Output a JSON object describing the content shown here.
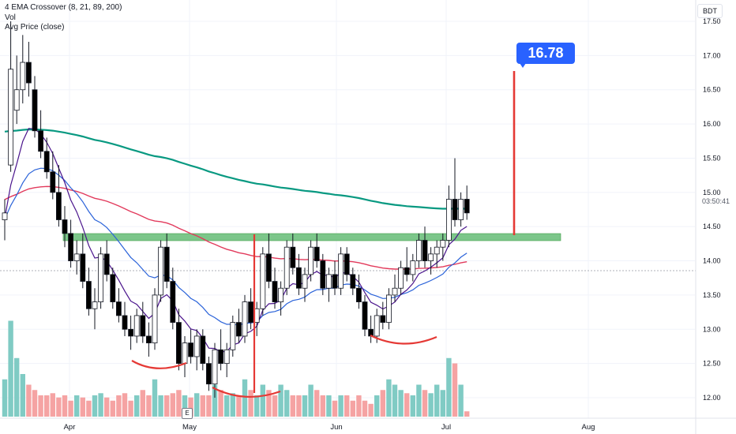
{
  "legend": {
    "ema": "4 EMA Crossover (8, 21, 89, 200)",
    "vol": "Vol",
    "avg": "Avg Price (close)"
  },
  "currency": "BDT",
  "countdown": "03:50:41",
  "target_label": "16.78",
  "e_marker": "E",
  "colors": {
    "up": "#ffffff",
    "down": "#000000",
    "candle_outline": "#131722",
    "vol_up": "#80cbc4",
    "vol_down": "#f5a3a3",
    "ema8": "#4a148c",
    "ema21": "#2b63d9",
    "ema89": "#e23a5c",
    "ema200": "#089981",
    "zone": "#7cc68a",
    "marker": "#e53935"
  },
  "chart_data": {
    "type": "candlestick",
    "y_axis": {
      "min": 11.8,
      "max": 17.6,
      "ticks": [
        "12.00",
        "12.50",
        "13.00",
        "13.50",
        "14.00",
        "14.50",
        "15.00",
        "15.50",
        "16.00",
        "16.50",
        "17.00",
        "17.50"
      ]
    },
    "x_axis": {
      "ticks": [
        "Apr",
        "May",
        "Jun",
        "Jul",
        "Aug"
      ]
    },
    "candles": [
      [
        14.6,
        14.9,
        14.3,
        14.7
      ],
      [
        15.4,
        17.5,
        15.3,
        16.8
      ],
      [
        16.2,
        17.0,
        16.0,
        16.5
      ],
      [
        16.5,
        17.3,
        16.3,
        16.9
      ],
      [
        16.9,
        17.2,
        16.4,
        16.6
      ],
      [
        16.5,
        16.7,
        15.8,
        15.9
      ],
      [
        15.9,
        16.2,
        15.5,
        15.6
      ],
      [
        15.6,
        15.8,
        15.2,
        15.3
      ],
      [
        15.3,
        15.6,
        14.9,
        15.0
      ],
      [
        15.0,
        15.4,
        14.5,
        14.6
      ],
      [
        14.6,
        14.8,
        14.2,
        14.4
      ],
      [
        14.4,
        14.6,
        13.9,
        14.0
      ],
      [
        14.0,
        14.3,
        13.8,
        14.1
      ],
      [
        14.1,
        14.4,
        13.6,
        13.7
      ],
      [
        13.7,
        13.9,
        13.2,
        13.3
      ],
      [
        13.3,
        13.6,
        13.0,
        13.4
      ],
      [
        13.4,
        14.2,
        13.3,
        14.1
      ],
      [
        14.1,
        14.3,
        13.7,
        13.8
      ],
      [
        13.8,
        13.9,
        13.3,
        13.4
      ],
      [
        13.4,
        13.6,
        13.1,
        13.2
      ],
      [
        13.2,
        13.4,
        12.9,
        13.0
      ],
      [
        13.0,
        13.2,
        12.7,
        12.9
      ],
      [
        12.9,
        13.3,
        12.8,
        13.2
      ],
      [
        13.2,
        13.4,
        12.8,
        12.9
      ],
      [
        12.9,
        13.1,
        12.6,
        12.8
      ],
      [
        12.8,
        13.6,
        12.7,
        13.5
      ],
      [
        13.5,
        14.3,
        13.4,
        14.2
      ],
      [
        14.2,
        14.4,
        13.6,
        13.7
      ],
      [
        13.7,
        13.9,
        13.0,
        13.1
      ],
      [
        13.1,
        13.3,
        12.4,
        12.5
      ],
      [
        12.5,
        12.9,
        12.3,
        12.8
      ],
      [
        12.8,
        13.0,
        12.5,
        12.6
      ],
      [
        12.6,
        13.0,
        12.4,
        12.9
      ],
      [
        12.9,
        13.0,
        12.4,
        12.5
      ],
      [
        12.5,
        12.6,
        12.1,
        12.2
      ],
      [
        12.2,
        12.8,
        12.0,
        12.7
      ],
      [
        12.7,
        13.0,
        12.4,
        12.5
      ],
      [
        12.5,
        12.8,
        12.3,
        12.7
      ],
      [
        12.7,
        13.2,
        12.6,
        13.1
      ],
      [
        13.1,
        13.3,
        12.8,
        12.9
      ],
      [
        12.9,
        13.5,
        12.8,
        13.4
      ],
      [
        13.4,
        13.6,
        13.0,
        13.1
      ],
      [
        13.1,
        13.4,
        12.9,
        13.3
      ],
      [
        13.3,
        14.2,
        13.2,
        14.1
      ],
      [
        14.1,
        14.4,
        13.6,
        13.7
      ],
      [
        13.7,
        13.9,
        13.3,
        13.4
      ],
      [
        13.4,
        13.7,
        13.2,
        13.6
      ],
      [
        13.6,
        14.3,
        13.5,
        14.2
      ],
      [
        14.2,
        14.4,
        13.8,
        13.9
      ],
      [
        13.9,
        14.1,
        13.5,
        13.6
      ],
      [
        13.6,
        13.9,
        13.4,
        13.8
      ],
      [
        13.8,
        14.3,
        13.7,
        14.2
      ],
      [
        14.2,
        14.4,
        13.9,
        14.0
      ],
      [
        14.0,
        14.1,
        13.5,
        13.6
      ],
      [
        13.6,
        13.9,
        13.4,
        13.8
      ],
      [
        13.8,
        14.0,
        13.5,
        13.6
      ],
      [
        13.6,
        14.2,
        13.5,
        14.1
      ],
      [
        14.1,
        14.2,
        13.7,
        13.8
      ],
      [
        13.8,
        13.9,
        13.5,
        13.6
      ],
      [
        13.6,
        13.8,
        13.3,
        13.4
      ],
      [
        13.4,
        13.5,
        12.9,
        13.0
      ],
      [
        13.0,
        13.2,
        12.8,
        12.9
      ],
      [
        12.9,
        13.3,
        12.8,
        13.2
      ],
      [
        13.2,
        13.4,
        13.0,
        13.1
      ],
      [
        13.1,
        13.6,
        13.0,
        13.5
      ],
      [
        13.5,
        13.8,
        13.4,
        13.6
      ],
      [
        13.6,
        14.0,
        13.5,
        13.9
      ],
      [
        13.9,
        14.2,
        13.7,
        13.8
      ],
      [
        13.8,
        14.1,
        13.7,
        14.0
      ],
      [
        14.0,
        14.4,
        13.9,
        14.3
      ],
      [
        14.3,
        14.5,
        13.9,
        14.0
      ],
      [
        14.0,
        14.2,
        13.8,
        14.1
      ],
      [
        14.1,
        14.3,
        13.9,
        14.2
      ],
      [
        14.2,
        14.4,
        14.0,
        14.3
      ],
      [
        14.3,
        15.1,
        14.2,
        14.9
      ],
      [
        14.9,
        15.5,
        14.5,
        14.6
      ],
      [
        14.6,
        15.0,
        14.5,
        14.9
      ],
      [
        14.9,
        15.1,
        14.6,
        14.7
      ]
    ],
    "volume": [
      0.35,
      0.9,
      0.55,
      0.4,
      0.3,
      0.25,
      0.2,
      0.2,
      0.22,
      0.18,
      0.2,
      0.15,
      0.2,
      0.18,
      0.15,
      0.2,
      0.22,
      0.18,
      0.15,
      0.2,
      0.22,
      0.15,
      0.2,
      0.25,
      0.2,
      0.35,
      0.2,
      0.2,
      0.22,
      0.25,
      0.2,
      0.18,
      0.22,
      0.2,
      0.2,
      0.3,
      0.25,
      0.2,
      0.22,
      0.2,
      0.35,
      0.25,
      0.2,
      0.3,
      0.25,
      0.2,
      0.3,
      0.25,
      0.2,
      0.2,
      0.2,
      0.3,
      0.25,
      0.2,
      0.2,
      0.15,
      0.2,
      0.2,
      0.15,
      0.2,
      0.15,
      0.12,
      0.2,
      0.25,
      0.35,
      0.3,
      0.25,
      0.22,
      0.2,
      0.3,
      0.25,
      0.22,
      0.3,
      0.25,
      0.55,
      0.5,
      0.3,
      0.05
    ]
  }
}
